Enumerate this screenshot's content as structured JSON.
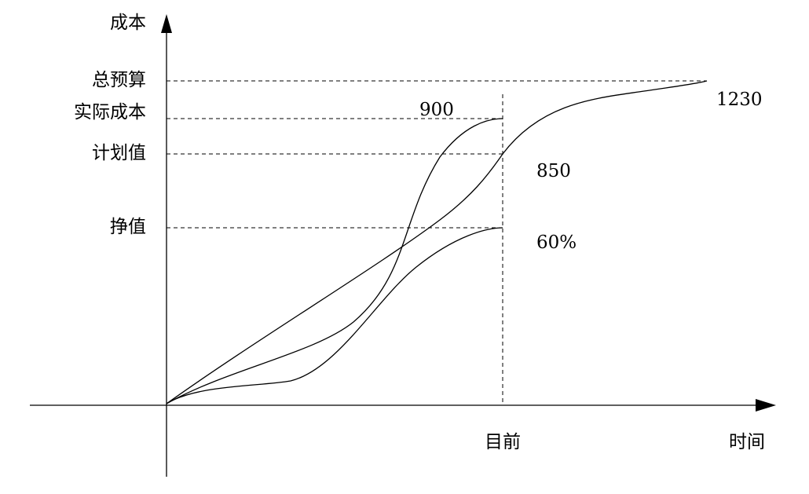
{
  "axes": {
    "y_label": "成本",
    "x_label": "时间"
  },
  "levels": [
    "总预算",
    "实际成本",
    "计划值",
    "挣值"
  ],
  "marker": "目前",
  "annotations": [
    "900",
    "1230",
    "850",
    "60%"
  ]
}
